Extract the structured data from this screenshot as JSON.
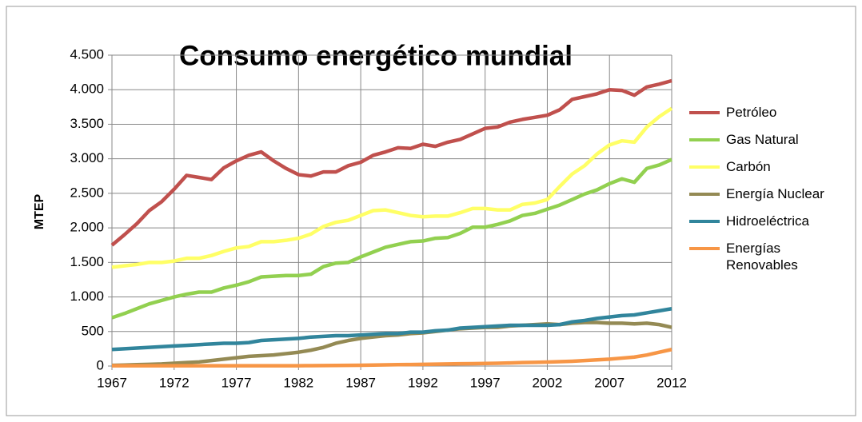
{
  "chart_data": {
    "type": "line",
    "title": "Consumo energético mundial",
    "y_label": "MTEP",
    "x": [
      1967,
      1968,
      1969,
      1970,
      1971,
      1972,
      1973,
      1974,
      1975,
      1976,
      1977,
      1978,
      1979,
      1980,
      1981,
      1982,
      1983,
      1984,
      1985,
      1986,
      1987,
      1988,
      1989,
      1990,
      1991,
      1992,
      1993,
      1994,
      1995,
      1996,
      1997,
      1998,
      1999,
      2000,
      2001,
      2002,
      2003,
      2004,
      2005,
      2006,
      2007,
      2008,
      2009,
      2010,
      2011,
      2012
    ],
    "xlim": [
      1967,
      2012
    ],
    "xticks": [
      1967,
      1972,
      1977,
      1982,
      1987,
      1992,
      1997,
      2002,
      2007,
      2012
    ],
    "ylim": [
      0,
      4500
    ],
    "yticks": [
      0,
      500,
      {
        "value": 1000,
        "label": "1.000"
      },
      {
        "value": 1500,
        "label": "1.500"
      },
      {
        "value": 2000,
        "label": "2.000"
      },
      {
        "value": 2500,
        "label": "2.500"
      },
      {
        "value": 3000,
        "label": "3.000"
      },
      {
        "value": 3500,
        "label": "3.500"
      },
      {
        "value": 4000,
        "label": "4.000"
      },
      {
        "value": 4500,
        "label": "4.500"
      }
    ],
    "grid": true,
    "legend": "right",
    "series": [
      {
        "name": "Petróleo",
        "color": "#c0504d",
        "values": [
          1750,
          1900,
          2060,
          2250,
          2380,
          2560,
          2760,
          2730,
          2700,
          2870,
          2970,
          3050,
          3100,
          2970,
          2860,
          2770,
          2750,
          2810,
          2810,
          2900,
          2950,
          3050,
          3100,
          3160,
          3150,
          3210,
          3180,
          3240,
          3280,
          3360,
          3440,
          3460,
          3530,
          3570,
          3600,
          3630,
          3710,
          3860,
          3900,
          3940,
          4000,
          3990,
          3920,
          4040,
          4080,
          4130
        ]
      },
      {
        "name": "Gas Natural",
        "color": "#92d050",
        "values": [
          700,
          760,
          830,
          900,
          950,
          1000,
          1040,
          1070,
          1070,
          1130,
          1170,
          1220,
          1290,
          1300,
          1310,
          1310,
          1330,
          1440,
          1490,
          1500,
          1580,
          1650,
          1720,
          1760,
          1800,
          1810,
          1850,
          1860,
          1920,
          2010,
          2010,
          2050,
          2100,
          2180,
          2210,
          2270,
          2330,
          2410,
          2490,
          2550,
          2640,
          2710,
          2660,
          2860,
          2910,
          2990
        ]
      },
      {
        "name": "Carbón",
        "color": "#ffff66",
        "values": [
          1430,
          1450,
          1470,
          1500,
          1500,
          1520,
          1560,
          1560,
          1600,
          1660,
          1710,
          1730,
          1800,
          1800,
          1820,
          1850,
          1910,
          2020,
          2080,
          2110,
          2180,
          2250,
          2260,
          2220,
          2180,
          2160,
          2170,
          2170,
          2220,
          2280,
          2280,
          2260,
          2260,
          2340,
          2360,
          2410,
          2600,
          2780,
          2900,
          3070,
          3200,
          3260,
          3240,
          3460,
          3610,
          3730
        ]
      },
      {
        "name": "Energía Nuclear",
        "color": "#948a54",
        "values": [
          10,
          15,
          20,
          25,
          30,
          40,
          50,
          60,
          80,
          100,
          120,
          140,
          150,
          160,
          180,
          200,
          230,
          270,
          330,
          370,
          400,
          420,
          440,
          450,
          470,
          480,
          500,
          520,
          540,
          550,
          560,
          560,
          580,
          590,
          600,
          610,
          600,
          620,
          630,
          630,
          620,
          620,
          610,
          620,
          600,
          560
        ]
      },
      {
        "name": "Hidroeléctrica",
        "color": "#31859c",
        "values": [
          240,
          250,
          260,
          270,
          280,
          290,
          300,
          310,
          320,
          330,
          330,
          340,
          370,
          380,
          390,
          400,
          420,
          430,
          440,
          440,
          450,
          460,
          470,
          470,
          490,
          490,
          510,
          520,
          550,
          560,
          570,
          580,
          590,
          590,
          590,
          590,
          600,
          640,
          660,
          690,
          710,
          730,
          740,
          770,
          800,
          830
        ]
      },
      {
        "name": "Energías Renovables",
        "color": "#f79646",
        "values": [
          5,
          5,
          5,
          5,
          5,
          5,
          5,
          5,
          5,
          5,
          5,
          5,
          5,
          5,
          5,
          5,
          6,
          7,
          8,
          10,
          12,
          15,
          18,
          20,
          22,
          25,
          28,
          30,
          33,
          35,
          38,
          40,
          45,
          50,
          53,
          58,
          63,
          70,
          80,
          90,
          100,
          115,
          130,
          160,
          200,
          240
        ]
      }
    ]
  }
}
